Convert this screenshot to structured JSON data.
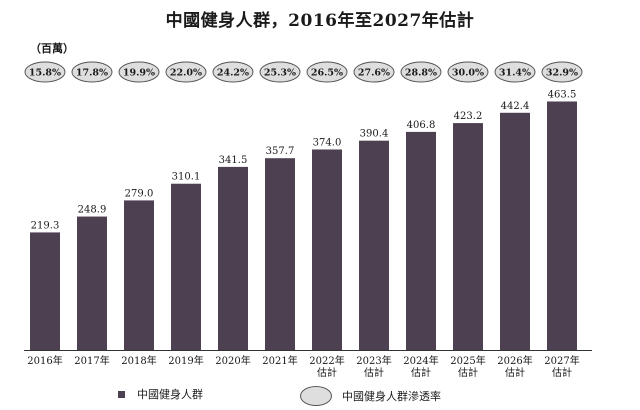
{
  "title": "中國健身人群，2016年至2027年估計",
  "unit_label": "（百萬）",
  "chart_data": {
    "type": "bar",
    "title": "中國健身人群，2016年至2027年估計",
    "ylabel": "（百萬）",
    "categories": [
      "2016年",
      "2017年",
      "2018年",
      "2019年",
      "2020年",
      "2021年",
      "2022年\n估計",
      "2023年\n估計",
      "2024年\n估計",
      "2025年\n估計",
      "2026年\n估計",
      "2027年\n估計"
    ],
    "series": [
      {
        "name": "中國健身人群",
        "values": [
          219.3,
          248.9,
          279.0,
          310.1,
          341.5,
          357.7,
          374.0,
          390.4,
          406.8,
          423.2,
          442.4,
          463.5
        ]
      },
      {
        "name": "中國健身人群滲透率",
        "values": [
          "15.8%",
          "17.8%",
          "19.9%",
          "22.0%",
          "24.2%",
          "25.3%",
          "26.5%",
          "27.6%",
          "28.8%",
          "30.0%",
          "31.4%",
          "32.9%"
        ]
      }
    ],
    "ylim": [
      0,
      470
    ],
    "grid": false,
    "legend_position": "bottom",
    "bar_color": "#4d4050",
    "oval_fill": "#dedede",
    "oval_stroke": "#555555"
  },
  "legend": {
    "bar_label": "中國健身人群",
    "oval_label": "中國健身人群滲透率"
  }
}
